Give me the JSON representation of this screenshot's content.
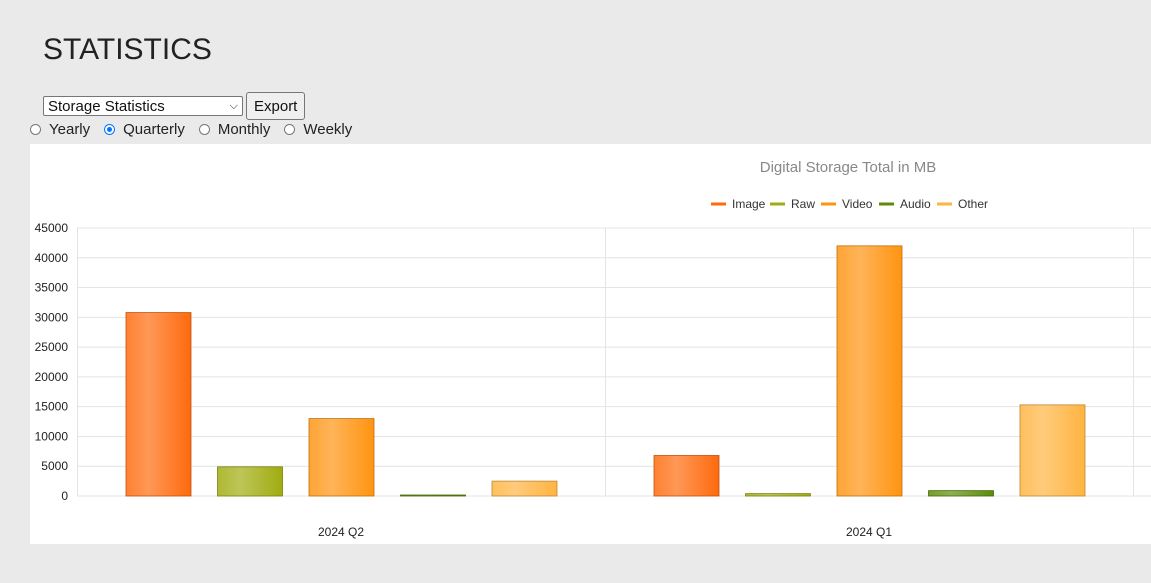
{
  "page": {
    "title": "STATISTICS"
  },
  "controls": {
    "select_value": "Storage Statistics",
    "export_label": "Export",
    "radios": [
      {
        "label": "Yearly",
        "checked": false
      },
      {
        "label": "Quarterly",
        "checked": true
      },
      {
        "label": "Monthly",
        "checked": false
      },
      {
        "label": "Weekly",
        "checked": false
      }
    ]
  },
  "chart_data": {
    "type": "bar",
    "title": "Digital Storage Total in MB",
    "xlabel": "",
    "ylabel": "",
    "ylim": [
      0,
      45000
    ],
    "yticks": [
      0,
      5000,
      10000,
      15000,
      20000,
      25000,
      30000,
      35000,
      40000,
      45000
    ],
    "categories": [
      "2024 Q2",
      "2024 Q1"
    ],
    "series": [
      {
        "name": "Image",
        "color": "#ff6a0d",
        "values": [
          30800,
          6800
        ]
      },
      {
        "name": "Raw",
        "color": "#a1ac10",
        "values": [
          4900,
          400
        ]
      },
      {
        "name": "Video",
        "color": "#ff9411",
        "values": [
          13000,
          42000
        ]
      },
      {
        "name": "Audio",
        "color": "#5e8c08",
        "values": [
          100,
          900
        ]
      },
      {
        "name": "Other",
        "color": "#ffb442",
        "values": [
          2500,
          15300
        ]
      }
    ],
    "legend_position": "top-center",
    "grid": true
  }
}
